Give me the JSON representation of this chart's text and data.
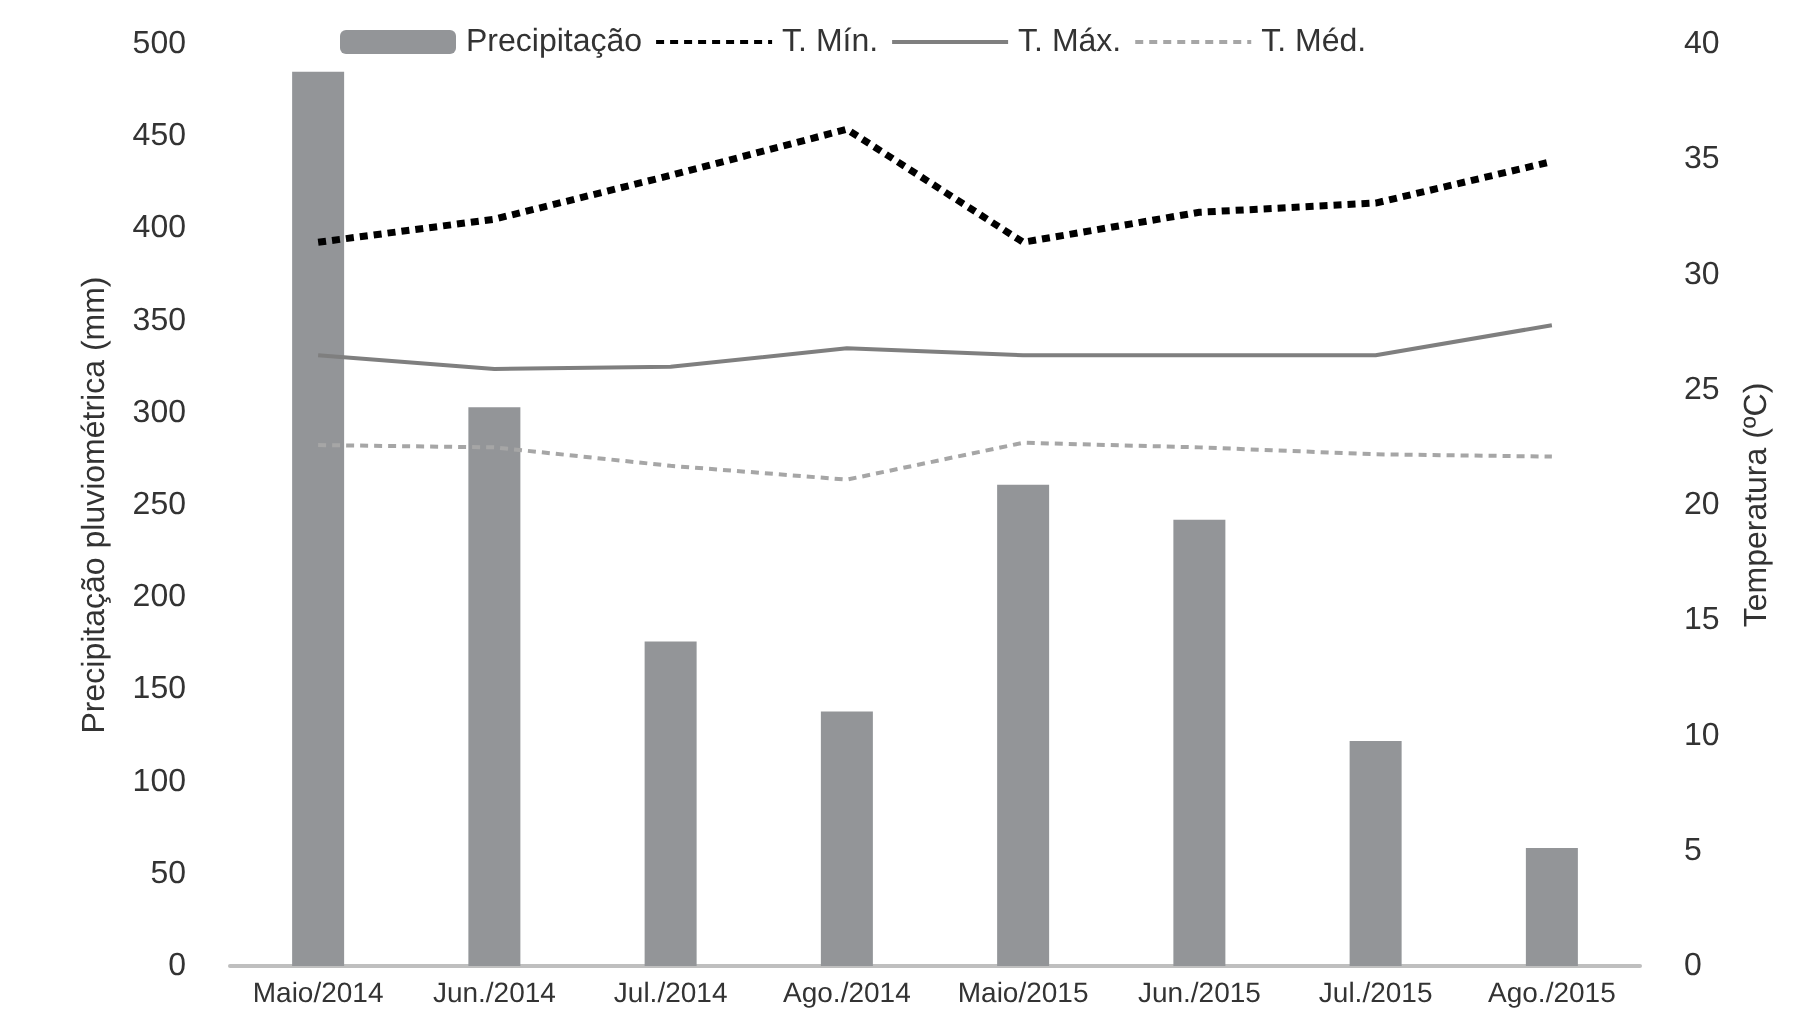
{
  "chart_data": {
    "type": "bar",
    "ylabel": "Precipitação pluviométrica (mm)",
    "y2label": "Temperatura (ºC)",
    "categories": [
      "Maio/2014",
      "Jun./2014",
      "Jul./2014",
      "Ago./2014",
      "Maio/2015",
      "Jun./2015",
      "Jul./2015",
      "Ago./2015"
    ],
    "series": [
      {
        "name": "Precipitação",
        "color": "#939598",
        "values": [
          485,
          303,
          176,
          138,
          261,
          242,
          122,
          64
        ]
      },
      {
        "name": "T. Mín.",
        "type": "line",
        "axis": "y2",
        "color": "#000000",
        "line_style": "dashed",
        "values": [
          31.4,
          32.4,
          34.3,
          36.3,
          31.4,
          32.7,
          33.1,
          34.9
        ]
      },
      {
        "name": "T. Máx.",
        "type": "line",
        "axis": "y2",
        "color": "#7f7f7f",
        "line_style": "solid",
        "values": [
          26.5,
          25.9,
          26.0,
          26.8,
          26.5,
          26.5,
          26.5,
          27.8
        ]
      },
      {
        "name": "T. Méd.",
        "type": "line",
        "axis": "y2",
        "color": "#a6a6a6",
        "line_style": "dashed",
        "values": [
          22.6,
          22.5,
          21.7,
          21.1,
          22.7,
          22.5,
          22.2,
          22.1
        ]
      }
    ],
    "ylim": [
      0,
      500
    ],
    "yticks": [
      0,
      50,
      100,
      150,
      200,
      250,
      300,
      350,
      400,
      450,
      500
    ],
    "y2lim": [
      0,
      40
    ],
    "y2ticks": [
      0,
      5,
      10,
      15,
      20,
      25,
      30,
      35,
      40
    ],
    "grid": false,
    "legend": "top",
    "marker": "none"
  }
}
